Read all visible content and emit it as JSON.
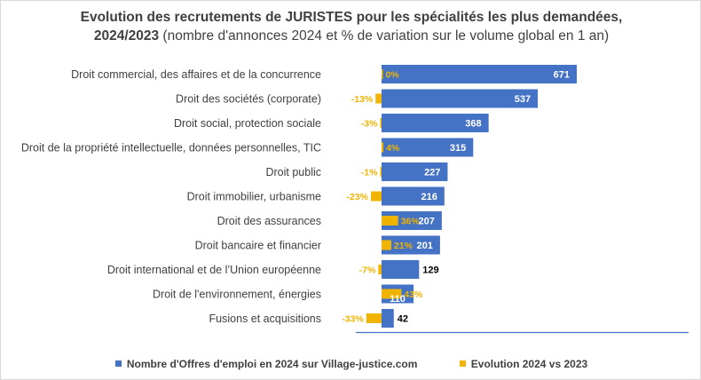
{
  "title": {
    "line1": "Evolution des recrutements de JURISTES pour les spécialités les plus demandées,",
    "line2_bold": "2024/2023",
    "line2_rest": " (nombre d'annonces 2024 et % de variation sur le volume global en 1 an)"
  },
  "legend": {
    "series1": "Nombre d'Offres d'emploi en 2024 sur Village-justice.com",
    "series2": "Evolution 2024 vs 2023"
  },
  "colors": {
    "offers": "#4472c4",
    "evolution": "#f0b400",
    "axis": "#4472c4",
    "text": "#404040"
  },
  "chart_data": {
    "type": "bar",
    "orientation": "horizontal",
    "categories": [
      "Droit commercial, des affaires et de la concurrence",
      "Droit des sociétés (corporate)",
      "Droit social, protection sociale",
      "Droit de la propriété intellectuelle, données personnelles, TIC",
      "Droit public",
      "Droit immobilier, urbanisme",
      "Droit des assurances",
      "Droit bancaire et financier",
      "Droit international et de l’Union européenne",
      "Droit de l'environnement, énergies",
      "Fusions et acquisitions"
    ],
    "series": [
      {
        "name": "Nombre d'Offres d'emploi en 2024 sur Village-justice.com",
        "values": [
          671,
          537,
          368,
          315,
          227,
          216,
          207,
          201,
          129,
          110,
          42
        ]
      },
      {
        "name": "Evolution 2024 vs 2023",
        "values": [
          0,
          -13,
          -3,
          4,
          -1,
          -23,
          36,
          21,
          -7,
          43,
          -33
        ],
        "labels": [
          "0%",
          "-13%",
          "-3%",
          "4%",
          "-1%",
          "-23%",
          "36%",
          "21%",
          "-7%",
          "43%",
          "-33%"
        ]
      }
    ],
    "legend_position": "bottom",
    "grid": false
  }
}
